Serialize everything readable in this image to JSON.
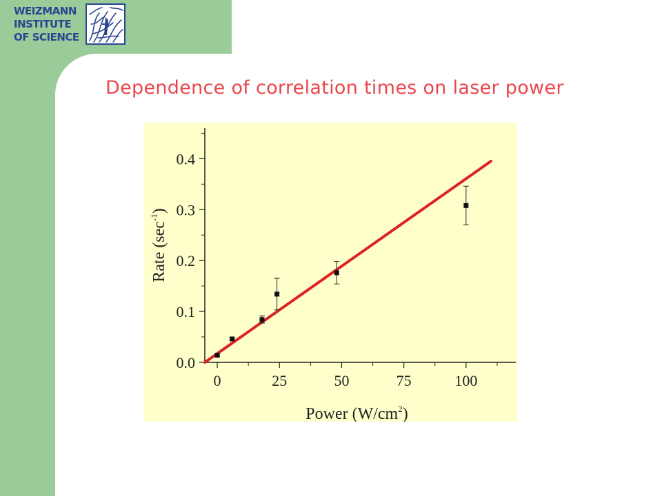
{
  "logo": {
    "lines": [
      "WEIZMANN",
      "INSTITUTE",
      "OF SCIENCE"
    ],
    "emblem": "weizmann-leaf-emblem-icon",
    "color": "#2a4590"
  },
  "title": "Dependence of correlation times on laser power",
  "colors": {
    "sidebar": "#99cc99",
    "title": "#e8474b",
    "panel": "#ffffcc",
    "fit_line": "#dd2222"
  },
  "chart_data": {
    "type": "scatter",
    "xlabel": "Power (W/cm",
    "xlabel_sup": "2",
    "xlabel_end": ")",
    "ylabel": "Rate (sec",
    "ylabel_sup": "-1",
    "ylabel_end": ")",
    "xlim": [
      -5,
      120
    ],
    "ylim": [
      0,
      0.46
    ],
    "x_ticks": [
      0,
      25,
      50,
      75,
      100
    ],
    "x_tick_labels": [
      "0",
      "25",
      "50",
      "75",
      "100"
    ],
    "y_ticks": [
      0.0,
      0.1,
      0.2,
      0.3,
      0.4
    ],
    "y_tick_labels": [
      "0.0",
      "0.1",
      "0.2",
      "0.3",
      "0.4"
    ],
    "points": [
      {
        "x": 0,
        "y": 0.014,
        "err": 0.002
      },
      {
        "x": 6,
        "y": 0.046,
        "err": 0.003
      },
      {
        "x": 18,
        "y": 0.084,
        "err": 0.007
      },
      {
        "x": 24,
        "y": 0.134,
        "err": 0.031
      },
      {
        "x": 48,
        "y": 0.176,
        "err": 0.022
      },
      {
        "x": 100,
        "y": 0.308,
        "err": 0.038
      }
    ],
    "fit_line": {
      "x": [
        -5,
        110
      ],
      "y": [
        0.0,
        0.395
      ]
    },
    "grid": false,
    "legend": "none"
  }
}
